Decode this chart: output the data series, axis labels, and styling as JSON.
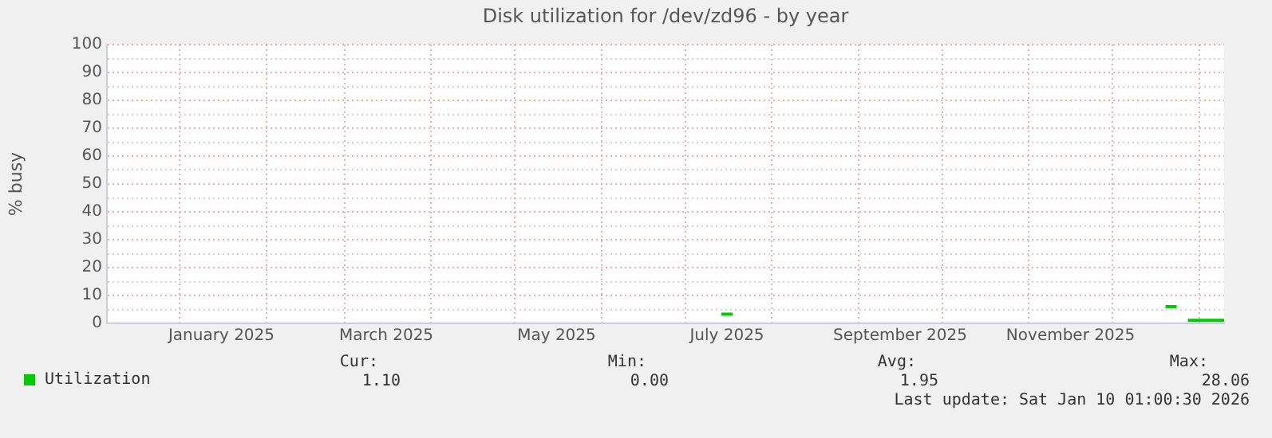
{
  "chart_data": {
    "type": "line",
    "title": "Disk utilization for /dev/zd96 - by year",
    "ylabel": "% busy",
    "xlim": [
      "2024-12-06",
      "2026-01-10"
    ],
    "xticks": [
      {
        "value": "2025-01-01",
        "label": null
      },
      {
        "value": "2025-01-16",
        "label": "January 2025"
      },
      {
        "value": "2025-02-01",
        "label": null
      },
      {
        "value": "2025-03-01",
        "label": null
      },
      {
        "value": "2025-03-16",
        "label": "March 2025"
      },
      {
        "value": "2025-04-01",
        "label": null
      },
      {
        "value": "2025-05-01",
        "label": null
      },
      {
        "value": "2025-05-16",
        "label": "May 2025"
      },
      {
        "value": "2025-06-01",
        "label": null
      },
      {
        "value": "2025-07-01",
        "label": null
      },
      {
        "value": "2025-07-16",
        "label": "July 2025"
      },
      {
        "value": "2025-08-01",
        "label": null
      },
      {
        "value": "2025-09-01",
        "label": null
      },
      {
        "value": "2025-09-16",
        "label": "September 2025"
      },
      {
        "value": "2025-10-01",
        "label": null
      },
      {
        "value": "2025-11-01",
        "label": null
      },
      {
        "value": "2025-11-16",
        "label": "November 2025"
      },
      {
        "value": "2025-12-01",
        "label": null
      },
      {
        "value": "2026-01-01",
        "label": null
      }
    ],
    "ylim": [
      0,
      100
    ],
    "yticks": [
      0,
      {
        "value": 5,
        "label": null
      },
      10,
      {
        "value": 15,
        "label": null
      },
      20,
      {
        "value": 25,
        "label": null
      },
      30,
      {
        "value": 35,
        "label": null
      },
      40,
      {
        "value": 45,
        "label": null
      },
      50,
      {
        "value": 55,
        "label": null
      },
      60,
      {
        "value": 65,
        "label": null
      },
      70,
      {
        "value": 75,
        "label": null
      },
      80,
      {
        "value": 85,
        "label": null
      },
      90,
      {
        "value": 95,
        "label": null
      },
      100
    ],
    "x": [
      "2025-07-14",
      "2025-07-18",
      "2025-07-19",
      "2025-12-20",
      "2025-12-24",
      "2025-12-25",
      "2025-12-28",
      "2026-01-10"
    ],
    "series": [
      {
        "name": "Utilization",
        "color": "#00cc00",
        "values": [
          3.3,
          3.3,
          null,
          6,
          6,
          null,
          1.1,
          1.1
        ]
      }
    ],
    "grid": true,
    "legend": "bottom left",
    "marker": "none",
    "line_style": "solid",
    "annotations": [
      "Cur:",
      "1.10",
      "Min:",
      "0.00",
      "Avg:",
      "1.95",
      "Max:",
      "28.06",
      "Last update: Sat Jan 10 01:00:30 2026"
    ]
  }
}
